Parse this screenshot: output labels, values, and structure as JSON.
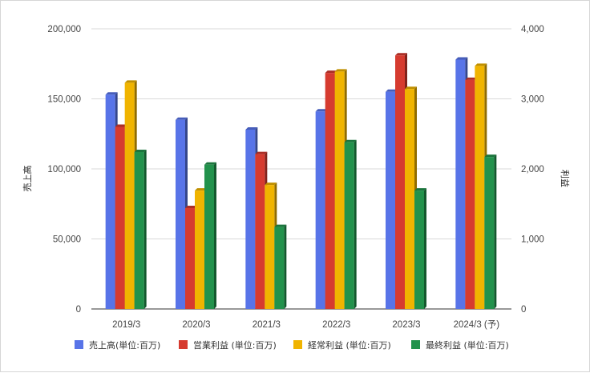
{
  "chart_data": {
    "type": "bar",
    "categories": [
      "2019/3",
      "2020/3",
      "2021/3",
      "2022/3",
      "2023/3",
      "2024/3 (予)"
    ],
    "y_left": {
      "label": "売上高",
      "ylim": [
        0,
        200000
      ],
      "ticks": [
        "200,000",
        "150,000",
        "100,000",
        "50,000",
        "0"
      ]
    },
    "y_right": {
      "label": "利益",
      "ylim": [
        0,
        4000
      ],
      "ticks": [
        "4,000",
        "3,000",
        "2,000",
        "1,000",
        "0"
      ]
    },
    "series": [
      {
        "name": "売上高(単位:百万)",
        "axis": "left",
        "color": "#5874e8",
        "values": [
          153000,
          135000,
          128000,
          141000,
          155000,
          178000
        ]
      },
      {
        "name": "営業利益 (単位:百万)",
        "axis": "right",
        "color": "#d63b2f",
        "values": [
          2600,
          1440,
          2210,
          3370,
          3620,
          3270
        ]
      },
      {
        "name": "経常利益 (単位:百万)",
        "axis": "right",
        "color": "#f0b400",
        "values": [
          3230,
          1690,
          1770,
          3390,
          3140,
          3470
        ]
      },
      {
        "name": "最終利益 (単位:百万)",
        "axis": "right",
        "color": "#22924c",
        "values": [
          2240,
          2060,
          1170,
          2380,
          1690,
          2170
        ]
      }
    ],
    "grid": true,
    "legend": "bottom"
  }
}
